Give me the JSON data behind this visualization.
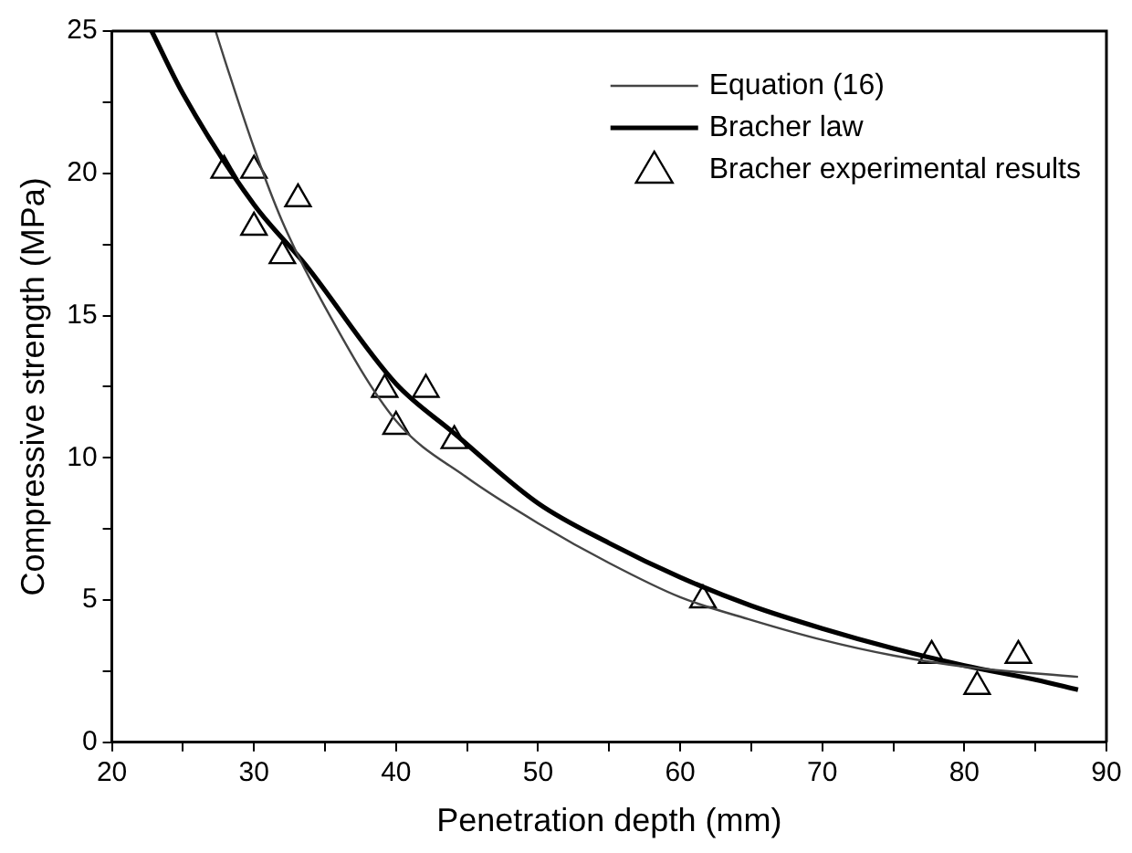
{
  "chart_data": {
    "type": "line",
    "xlabel": "Penetration depth (mm)",
    "ylabel": "Compressive strength (MPa)",
    "xlim": [
      20,
      90
    ],
    "ylim": [
      0,
      25
    ],
    "xticks": [
      20,
      {
        "value": 25,
        "label": null
      },
      30,
      {
        "value": 35,
        "label": null
      },
      40,
      {
        "value": 45,
        "label": null
      },
      50,
      {
        "value": 55,
        "label": null
      },
      60,
      {
        "value": 65,
        "label": null
      },
      70,
      {
        "value": 75,
        "label": null
      },
      80,
      {
        "value": 85,
        "label": null
      },
      90
    ],
    "yticks": [
      0,
      {
        "value": 2.5,
        "label": null
      },
      5,
      {
        "value": 7.5,
        "label": null
      },
      10,
      {
        "value": 12.5,
        "label": null
      },
      15,
      {
        "value": 17.5,
        "label": null
      },
      20,
      {
        "value": 22.5,
        "label": null
      },
      25
    ],
    "grid": false,
    "legend": "top right",
    "series": [
      {
        "name": "Equation (16)",
        "type": "line",
        "color": "#444444",
        "line_style": "solid",
        "marker": "none",
        "x": [
          27.3,
          28,
          30,
          32,
          35,
          40,
          45,
          50,
          55,
          60,
          65,
          70,
          75,
          80,
          88
        ],
        "values": [
          25,
          23.9,
          20.9,
          18.3,
          15.3,
          11.3,
          9.3,
          7.7,
          6.3,
          5.1,
          4.3,
          3.6,
          3.05,
          2.66,
          2.3
        ]
      },
      {
        "name": "Bracher law",
        "type": "line",
        "color": "#000000",
        "line_style": "solid",
        "marker": "none",
        "x": [
          22.8,
          25,
          30,
          33.6,
          40,
          44,
          50,
          55,
          60,
          65,
          70,
          75,
          80,
          85,
          88
        ],
        "values": [
          25,
          22.8,
          18.9,
          16.8,
          12.6,
          10.9,
          8.4,
          7.0,
          5.8,
          4.8,
          4.0,
          3.3,
          2.7,
          2.2,
          1.85
        ]
      },
      {
        "name": "Bracher experimental results",
        "type": "scatter",
        "color": "#000000",
        "marker": "triangle",
        "x": [
          27.9,
          30.0,
          30.0,
          32.0,
          33.1,
          39.2,
          40.0,
          42.1,
          44.1,
          61.6,
          77.7,
          80.9,
          83.8
        ],
        "values": [
          20.1,
          20.1,
          18.1,
          17.1,
          19.1,
          12.4,
          11.1,
          12.4,
          10.6,
          5.0,
          3.05,
          1.96,
          3.05
        ]
      }
    ]
  }
}
